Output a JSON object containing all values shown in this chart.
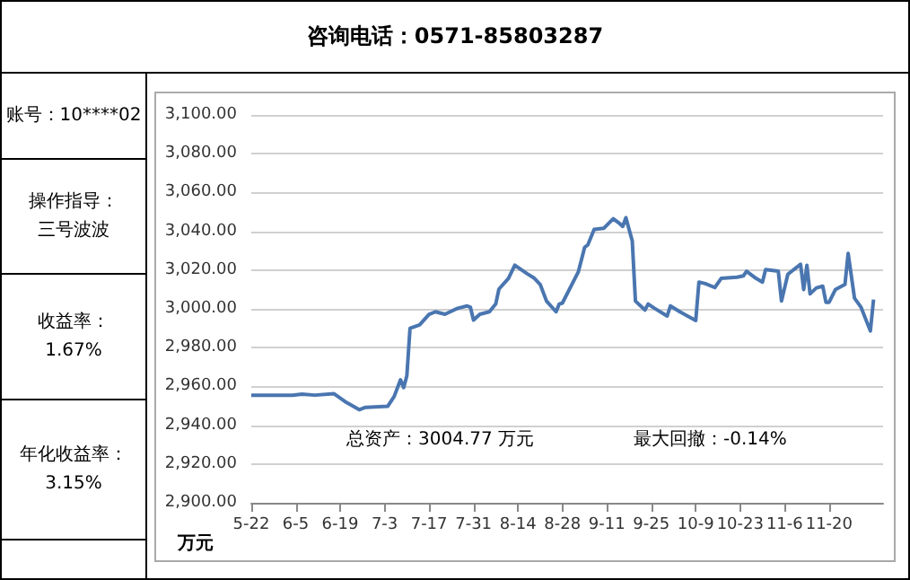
{
  "chart_data": {
    "type": "line",
    "title": "咨询电话：0571-85803287",
    "ylabel": "万元",
    "annotations": [
      "账号：10****02",
      "操作指导：",
      "三号波波",
      "收益率：",
      "1.67%",
      "年化收益率：",
      "3.15%",
      "总资产：3004.77 万元",
      "最大回撤：-0.14%"
    ],
    "x": [
      "--05-22",
      "--06-04",
      "--06-07",
      "--06-11",
      "--06-17",
      "--06-21",
      "--06-25",
      "--06-27",
      "--07-04",
      "--07-06",
      "--07-08",
      "--07-09",
      "--07-10",
      "--07-11",
      "--07-14",
      "--07-17",
      "--07-19",
      "--07-22",
      "--07-26",
      "--07-29",
      "--07-30",
      "--07-31",
      "--08-02",
      "--08-05",
      "--08-07",
      "--08-08",
      "--08-11",
      "--08-13",
      "--08-17",
      "--08-19",
      "--08-21",
      "--08-23",
      "--08-26",
      "--08-27",
      "--08-28",
      "--09-02",
      "--09-04",
      "--09-05",
      "--09-07",
      "--09-10",
      "--09-13",
      "--09-15",
      "--09-16",
      "--09-17",
      "--09-19",
      "--09-20",
      "--09-23",
      "--09-24",
      "--09-26",
      "--09-30",
      "--10-01",
      "--10-04",
      "--10-09",
      "--10-10",
      "--10-12",
      "--10-15",
      "--10-17",
      "--10-22",
      "--10-24",
      "--10-25",
      "--10-28",
      "--10-30",
      "--10-31",
      "--11-04",
      "--11-05",
      "--11-07",
      "--11-11",
      "--11-12",
      "--11-13",
      "--11-14",
      "--11-16",
      "--11-18",
      "--11-19",
      "--11-20",
      "--11-22",
      "--11-25",
      "--11-26",
      "--11-28",
      "--11-30",
      "--12-03",
      "--12-04"
    ],
    "series": [
      {
        "color": "#4a76b0",
        "values": [
          2955.4,
          2955.4,
          2956,
          2955.5,
          2956.3,
          2951.7,
          2948,
          2949.2,
          2949.8,
          2954.8,
          2963.4,
          2959.4,
          2965.5,
          2990,
          2991.7,
          2997.2,
          2998.5,
          2997.2,
          3000.3,
          3001.5,
          3000.9,
          2994.2,
          2997.2,
          2998.5,
          3002.5,
          3010.2,
          3015.7,
          3022.5,
          3018,
          3016,
          3012.6,
          3004,
          2998.5,
          3002.5,
          3003,
          3019,
          3031.7,
          3033,
          3041,
          3041.5,
          3046.5,
          3044,
          3042.5,
          3047,
          3035,
          3004,
          2999.4,
          3002.5,
          3000.3,
          2996.3,
          3001.5,
          2998.5,
          2994,
          3013.8,
          3013,
          3011,
          3015.7,
          3016.3,
          3017,
          3019.4,
          3015.7,
          3013.8,
          3020.3,
          3019.4,
          3004,
          3017.8,
          3023,
          3010,
          3022.5,
          3007.7,
          3010.8,
          3011.7,
          3003.4,
          3003.4,
          3010,
          3012.6,
          3028.6,
          3005.5,
          3001,
          2988.6,
          3004.8
        ]
      }
    ],
    "xlim": [
      "--05-22",
      "--12-07"
    ],
    "xticks": [
      {
        "value": "--05-22",
        "label": "5-22"
      },
      {
        "value": "--06-05",
        "label": "6-5"
      },
      {
        "value": "--06-19",
        "label": "6-19"
      },
      {
        "value": "--07-03",
        "label": "7-3"
      },
      {
        "value": "--07-17",
        "label": "7-17"
      },
      {
        "value": "--07-31",
        "label": "7-31"
      },
      {
        "value": "--08-14",
        "label": "8-14"
      },
      {
        "value": "--08-28",
        "label": "8-28"
      },
      {
        "value": "--09-11",
        "label": "9-11"
      },
      {
        "value": "--09-25",
        "label": "9-25"
      },
      {
        "value": "--10-09",
        "label": "10-9"
      },
      {
        "value": "--10-23",
        "label": "10-23"
      },
      {
        "value": "--11-06",
        "label": "11-6"
      },
      {
        "value": "--11-20",
        "label": "11-20"
      }
    ],
    "ylim": [
      2900,
      3100
    ],
    "yticks": [
      {
        "value": 2900,
        "label": "2,900.00"
      },
      {
        "value": 2920,
        "label": "2,920.00"
      },
      {
        "value": 2940,
        "label": "2,940.00"
      },
      {
        "value": 2960,
        "label": "2,960.00"
      },
      {
        "value": 2980,
        "label": "2,980.00"
      },
      {
        "value": 3000,
        "label": "3,000.00"
      },
      {
        "value": 3020,
        "label": "3,020.00"
      },
      {
        "value": 3040,
        "label": "3,040.00"
      },
      {
        "value": 3060,
        "label": "3,060.00"
      },
      {
        "value": 3080,
        "label": "3,080.00"
      },
      {
        "value": 3100,
        "label": "3,100.00"
      }
    ],
    "grid": "y",
    "marker": "none",
    "line_style": "solid"
  }
}
